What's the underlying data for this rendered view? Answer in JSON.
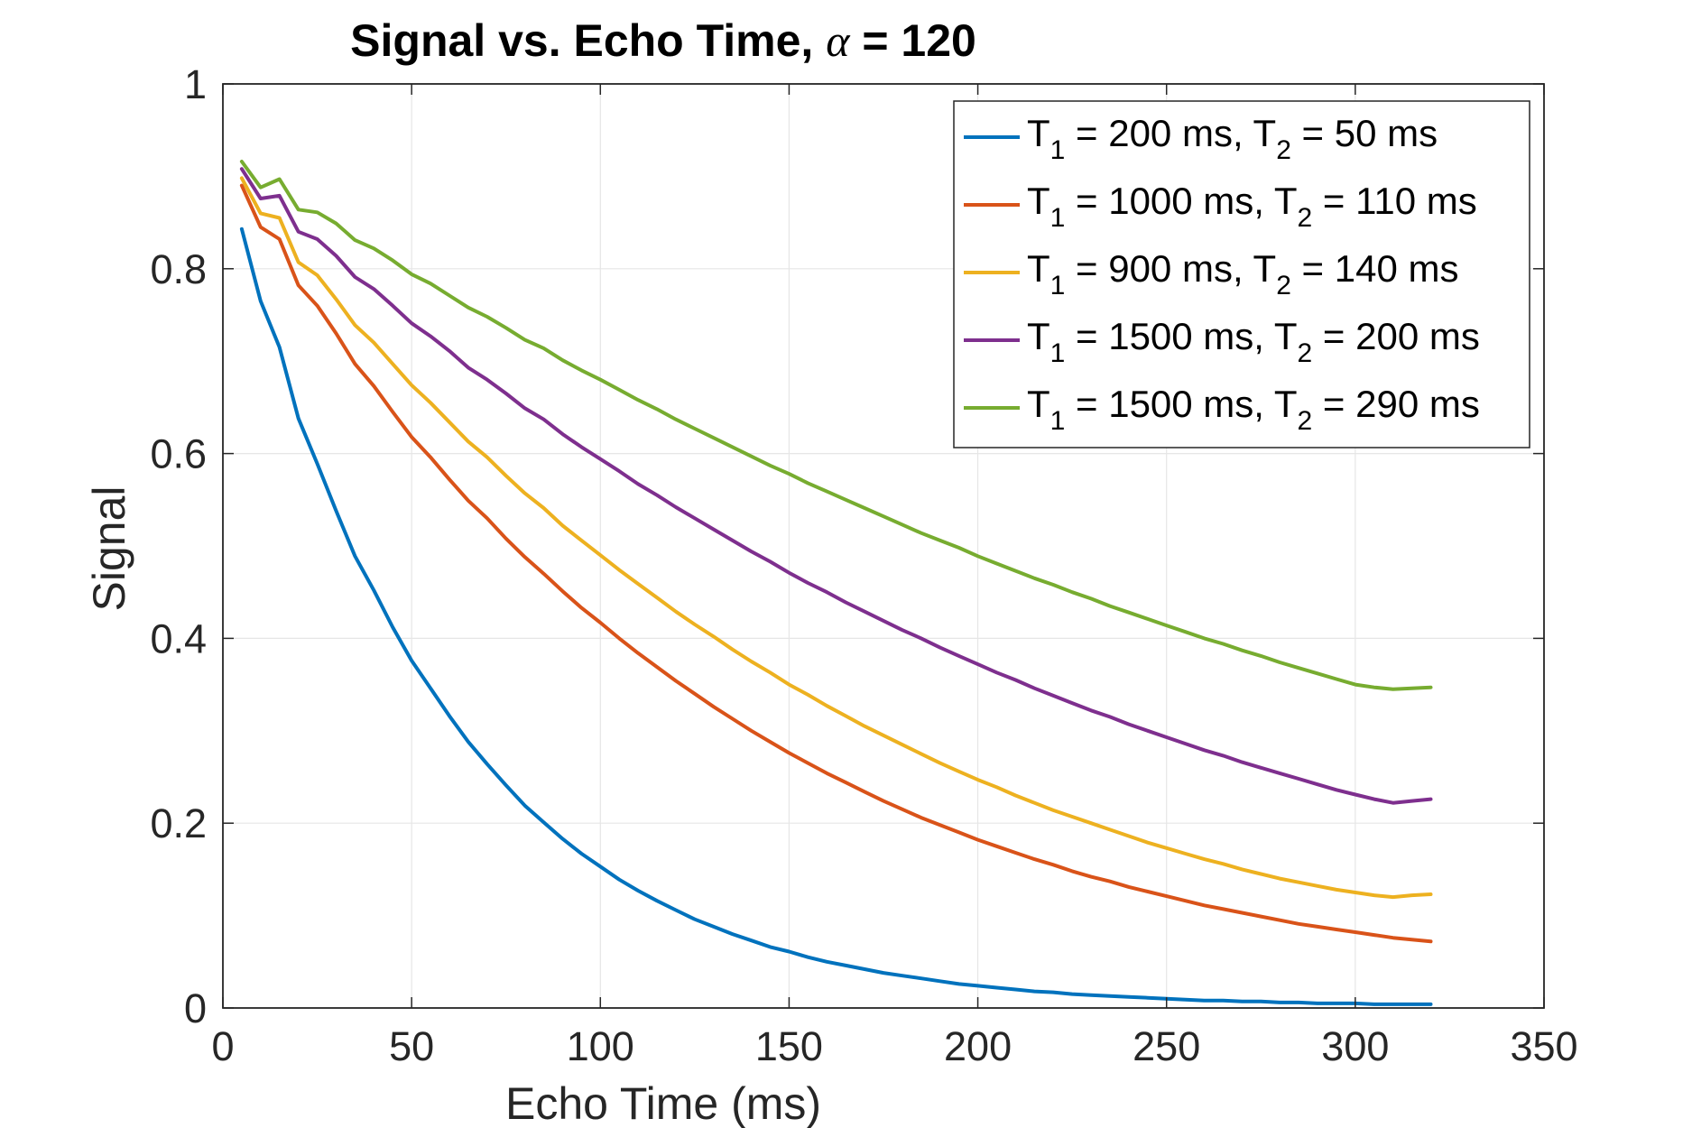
{
  "chart_data": {
    "type": "line",
    "title": {
      "prefix": "Signal vs. Echo Time, ",
      "symbol": "α",
      "suffix": " = 120"
    },
    "xlabel": "Echo Time (ms)",
    "ylabel": "Signal",
    "xlim": [
      0,
      350
    ],
    "ylim": [
      0,
      1
    ],
    "xticks": [
      0,
      50,
      100,
      150,
      200,
      250,
      300,
      350
    ],
    "xtick_labels": [
      "0",
      "50",
      "100",
      "150",
      "200",
      "250",
      "300",
      "350"
    ],
    "yticks": [
      0,
      0.2,
      0.4,
      0.6,
      0.8,
      1
    ],
    "ytick_labels": [
      "0",
      "0.2",
      "0.4",
      "0.6",
      "0.8",
      "1"
    ],
    "grid": true,
    "legend_position": "top-right",
    "x": [
      5,
      10,
      15,
      20,
      25,
      30,
      35,
      40,
      45,
      50,
      55,
      60,
      65,
      70,
      75,
      80,
      85,
      90,
      95,
      100,
      105,
      110,
      115,
      120,
      125,
      130,
      135,
      140,
      145,
      150,
      155,
      160,
      165,
      170,
      175,
      180,
      185,
      190,
      195,
      200,
      205,
      210,
      215,
      220,
      225,
      230,
      235,
      240,
      245,
      250,
      255,
      260,
      265,
      270,
      275,
      280,
      285,
      290,
      295,
      300,
      305,
      310,
      315,
      320
    ],
    "series": [
      {
        "legend": {
          "a": "T",
          "a_sub": "1",
          "b": " = 200 ms, T",
          "b_sub": "2",
          "c": " = 50 ms"
        },
        "color": "#0072BD",
        "values": [
          0.843,
          0.765,
          0.715,
          0.638,
          0.589,
          0.538,
          0.489,
          0.452,
          0.412,
          0.376,
          0.346,
          0.316,
          0.288,
          0.264,
          0.241,
          0.219,
          0.201,
          0.183,
          0.167,
          0.153,
          0.139,
          0.127,
          0.116,
          0.106,
          0.096,
          0.088,
          0.08,
          0.073,
          0.066,
          0.061,
          0.055,
          0.05,
          0.046,
          0.042,
          0.038,
          0.035,
          0.032,
          0.029,
          0.026,
          0.024,
          0.022,
          0.02,
          0.018,
          0.017,
          0.015,
          0.014,
          0.013,
          0.012,
          0.011,
          0.01,
          0.009,
          0.008,
          0.008,
          0.007,
          0.007,
          0.006,
          0.006,
          0.005,
          0.005,
          0.005,
          0.004,
          0.004,
          0.004,
          0.004
        ]
      },
      {
        "legend": {
          "a": "T",
          "a_sub": "1",
          "b": " = 1000 ms, T",
          "b_sub": "2",
          "c": " = 110 ms"
        },
        "color": "#D95319",
        "values": [
          0.89,
          0.845,
          0.832,
          0.782,
          0.76,
          0.73,
          0.697,
          0.673,
          0.645,
          0.618,
          0.596,
          0.572,
          0.549,
          0.53,
          0.508,
          0.488,
          0.47,
          0.451,
          0.433,
          0.417,
          0.4,
          0.384,
          0.369,
          0.354,
          0.34,
          0.326,
          0.313,
          0.3,
          0.288,
          0.276,
          0.265,
          0.254,
          0.244,
          0.234,
          0.224,
          0.215,
          0.206,
          0.198,
          0.19,
          0.182,
          0.175,
          0.168,
          0.161,
          0.155,
          0.148,
          0.142,
          0.137,
          0.131,
          0.126,
          0.121,
          0.116,
          0.111,
          0.107,
          0.103,
          0.099,
          0.095,
          0.091,
          0.088,
          0.085,
          0.082,
          0.079,
          0.076,
          0.074,
          0.072
        ]
      },
      {
        "legend": {
          "a": "T",
          "a_sub": "1",
          "b": " = 900 ms, T",
          "b_sub": "2",
          "c": " = 140 ms"
        },
        "color": "#EDB120",
        "values": [
          0.898,
          0.86,
          0.855,
          0.807,
          0.793,
          0.767,
          0.739,
          0.72,
          0.697,
          0.674,
          0.655,
          0.634,
          0.613,
          0.596,
          0.576,
          0.557,
          0.541,
          0.522,
          0.506,
          0.49,
          0.474,
          0.459,
          0.444,
          0.429,
          0.415,
          0.402,
          0.388,
          0.375,
          0.363,
          0.35,
          0.339,
          0.327,
          0.316,
          0.305,
          0.295,
          0.285,
          0.275,
          0.265,
          0.256,
          0.247,
          0.239,
          0.23,
          0.222,
          0.214,
          0.207,
          0.2,
          0.193,
          0.186,
          0.179,
          0.173,
          0.167,
          0.161,
          0.156,
          0.15,
          0.145,
          0.14,
          0.136,
          0.132,
          0.128,
          0.125,
          0.122,
          0.12,
          0.122,
          0.123
        ]
      },
      {
        "legend": {
          "a": "T",
          "a_sub": "1",
          "b": " = 1500 ms, T",
          "b_sub": "2",
          "c": " = 200 ms"
        },
        "color": "#7E2F8E",
        "values": [
          0.908,
          0.876,
          0.879,
          0.84,
          0.832,
          0.814,
          0.791,
          0.778,
          0.76,
          0.741,
          0.727,
          0.711,
          0.693,
          0.68,
          0.665,
          0.649,
          0.637,
          0.621,
          0.607,
          0.594,
          0.581,
          0.567,
          0.555,
          0.542,
          0.53,
          0.518,
          0.506,
          0.494,
          0.483,
          0.471,
          0.46,
          0.45,
          0.439,
          0.429,
          0.419,
          0.409,
          0.4,
          0.39,
          0.381,
          0.372,
          0.363,
          0.355,
          0.346,
          0.338,
          0.33,
          0.322,
          0.315,
          0.307,
          0.3,
          0.293,
          0.286,
          0.279,
          0.273,
          0.266,
          0.26,
          0.254,
          0.248,
          0.242,
          0.236,
          0.231,
          0.226,
          0.222,
          0.224,
          0.226
        ]
      },
      {
        "legend": {
          "a": "T",
          "a_sub": "1",
          "b": " = 1500 ms, T",
          "b_sub": "2",
          "c": " = 290 ms"
        },
        "color": "#77AC30",
        "values": [
          0.916,
          0.888,
          0.897,
          0.864,
          0.861,
          0.849,
          0.831,
          0.822,
          0.809,
          0.794,
          0.784,
          0.771,
          0.758,
          0.748,
          0.736,
          0.723,
          0.714,
          0.701,
          0.69,
          0.68,
          0.669,
          0.658,
          0.648,
          0.637,
          0.627,
          0.617,
          0.607,
          0.597,
          0.587,
          0.578,
          0.568,
          0.559,
          0.55,
          0.541,
          0.532,
          0.523,
          0.514,
          0.506,
          0.498,
          0.489,
          0.481,
          0.473,
          0.465,
          0.458,
          0.45,
          0.443,
          0.435,
          0.428,
          0.421,
          0.414,
          0.407,
          0.4,
          0.394,
          0.387,
          0.381,
          0.374,
          0.368,
          0.362,
          0.356,
          0.35,
          0.347,
          0.345,
          0.346,
          0.347
        ]
      }
    ]
  }
}
